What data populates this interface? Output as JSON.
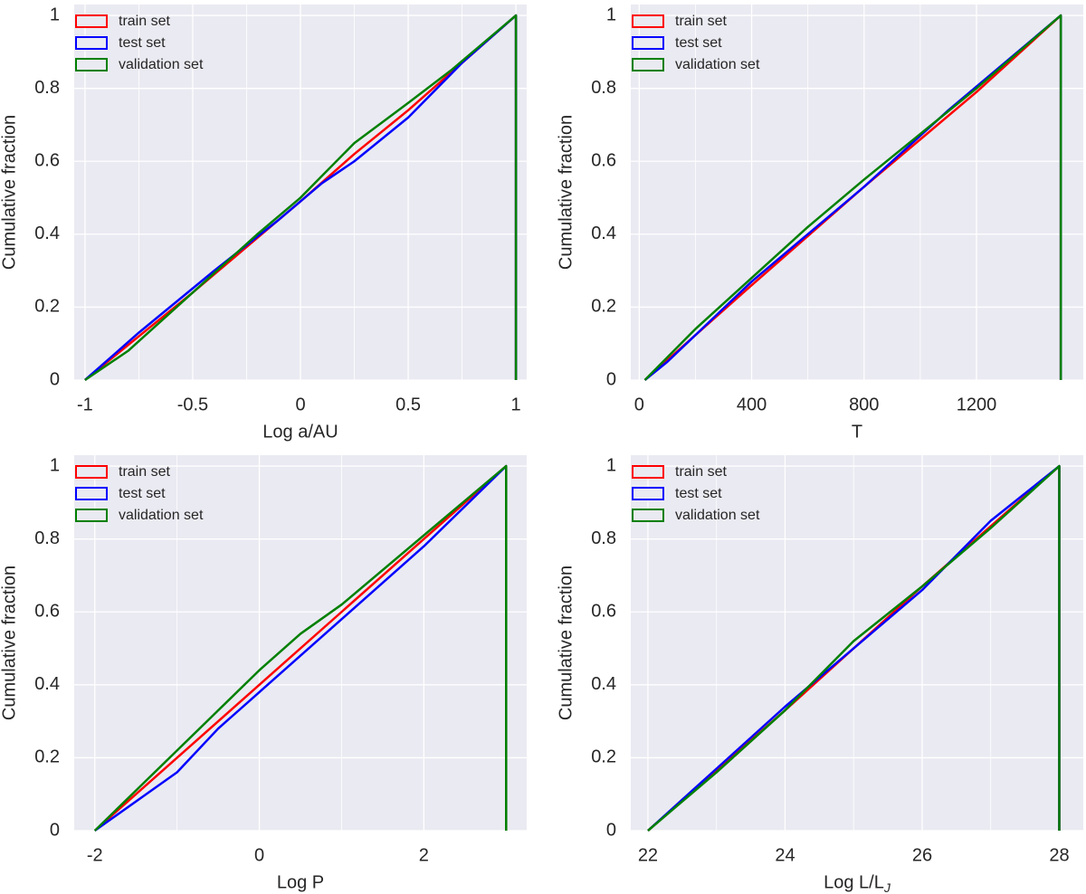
{
  "ylabel_common": "Cumulative fraction",
  "legend_labels": [
    "train set",
    "test set",
    "validation set"
  ],
  "series_colors": {
    "train": "#ff0000",
    "test": "#0000ff",
    "validation": "#008000"
  },
  "chart_data": [
    {
      "type": "line",
      "title": "",
      "xlabel": "Log a/AU",
      "xlabel_sub": "",
      "ylabel": "Cumulative fraction",
      "xlim": [
        -1.05,
        1.05
      ],
      "ylim": [
        0,
        1.03
      ],
      "xticks": [
        -1,
        -0.5,
        0,
        0.5,
        1
      ],
      "xtick_labels": [
        "-1",
        "-0.5",
        "0",
        "0.5",
        "1"
      ],
      "yticks": [
        0,
        0.2,
        0.4,
        0.6,
        0.8,
        1
      ],
      "ytick_labels": [
        "0",
        "0.2",
        "0.4",
        "0.6",
        "0.8",
        "1"
      ],
      "grid": true,
      "legend": "top-left",
      "end_x": 1,
      "series": [
        {
          "name": "train set",
          "key": "train",
          "x": [
            -1,
            -0.5,
            0,
            0.25,
            0.5,
            1
          ],
          "y": [
            0,
            0.24,
            0.49,
            0.62,
            0.74,
            1
          ]
        },
        {
          "name": "test set",
          "key": "test",
          "x": [
            -1,
            -0.75,
            -0.4,
            -0.1,
            0.1,
            0.25,
            0.5,
            0.75,
            1
          ],
          "y": [
            0,
            0.13,
            0.3,
            0.44,
            0.54,
            0.6,
            0.72,
            0.87,
            1
          ]
        },
        {
          "name": "validation set",
          "key": "validation",
          "x": [
            -1,
            -0.8,
            -0.5,
            -0.2,
            0,
            0.25,
            0.5,
            0.7,
            1
          ],
          "y": [
            0,
            0.08,
            0.24,
            0.4,
            0.5,
            0.65,
            0.76,
            0.85,
            1
          ]
        }
      ]
    },
    {
      "type": "line",
      "title": "",
      "xlabel": "T",
      "xlabel_sub": "",
      "ylabel": "Cumulative fraction",
      "xlim": [
        -30,
        1580
      ],
      "ylim": [
        0,
        1.03
      ],
      "xticks": [
        0,
        400,
        800,
        1200
      ],
      "xtick_labels": [
        "0",
        "400",
        "800",
        "1200"
      ],
      "yticks": [
        0,
        0.2,
        0.4,
        0.6,
        0.8,
        1
      ],
      "ytick_labels": [
        "0",
        "0.2",
        "0.4",
        "0.6",
        "0.8",
        "1"
      ],
      "grid": true,
      "legend": "top-left",
      "end_x": 1500,
      "series": [
        {
          "name": "train set",
          "key": "train",
          "x": [
            20,
            400,
            800,
            1200,
            1500
          ],
          "y": [
            0,
            0.26,
            0.53,
            0.79,
            1
          ]
        },
        {
          "name": "test set",
          "key": "test",
          "x": [
            20,
            100,
            400,
            800,
            1100,
            1500
          ],
          "y": [
            0,
            0.05,
            0.27,
            0.53,
            0.74,
            1
          ]
        },
        {
          "name": "validation set",
          "key": "validation",
          "x": [
            20,
            200,
            400,
            600,
            800,
            1200,
            1500
          ],
          "y": [
            0,
            0.14,
            0.28,
            0.42,
            0.55,
            0.8,
            1
          ]
        }
      ]
    },
    {
      "type": "line",
      "title": "",
      "xlabel": "Log P",
      "xlabel_sub": "",
      "ylabel": "Cumulative fraction",
      "xlim": [
        -2.25,
        3.25
      ],
      "ylim": [
        0,
        1.03
      ],
      "xticks": [
        -2,
        0,
        2
      ],
      "xtick_labels": [
        "-2",
        "0",
        "2"
      ],
      "yticks": [
        0,
        0.2,
        0.4,
        0.6,
        0.8,
        1
      ],
      "ytick_labels": [
        "0",
        "0.2",
        "0.4",
        "0.6",
        "0.8",
        "1"
      ],
      "grid": true,
      "legend": "top-left",
      "end_x": 3,
      "series": [
        {
          "name": "train set",
          "key": "train",
          "x": [
            -2,
            -1,
            0,
            1,
            2,
            3
          ],
          "y": [
            0,
            0.2,
            0.4,
            0.6,
            0.8,
            1
          ]
        },
        {
          "name": "test set",
          "key": "test",
          "x": [
            -2,
            -1,
            -0.5,
            0,
            1,
            2,
            3
          ],
          "y": [
            0,
            0.16,
            0.28,
            0.38,
            0.58,
            0.78,
            1
          ]
        },
        {
          "name": "validation set",
          "key": "validation",
          "x": [
            -2,
            -1,
            0,
            0.5,
            1,
            2,
            3
          ],
          "y": [
            0,
            0.22,
            0.44,
            0.54,
            0.62,
            0.81,
            1
          ]
        }
      ]
    },
    {
      "type": "line",
      "title": "",
      "xlabel": "Log L/L",
      "xlabel_sub": "J",
      "ylabel": "Cumulative fraction",
      "xlim": [
        21.75,
        28.35
      ],
      "ylim": [
        0,
        1.03
      ],
      "xticks": [
        22,
        24,
        26,
        28
      ],
      "xtick_labels": [
        "22",
        "24",
        "26",
        "28"
      ],
      "yticks": [
        0,
        0.2,
        0.4,
        0.6,
        0.8,
        1
      ],
      "ytick_labels": [
        "0",
        "0.2",
        "0.4",
        "0.6",
        "0.8",
        "1"
      ],
      "grid": true,
      "legend": "top-left",
      "end_x": 28,
      "series": [
        {
          "name": "train set",
          "key": "train",
          "x": [
            22,
            24,
            26,
            28
          ],
          "y": [
            0,
            0.33,
            0.67,
            1
          ]
        },
        {
          "name": "test set",
          "key": "test",
          "x": [
            22,
            23,
            24,
            25,
            26,
            27,
            28
          ],
          "y": [
            0,
            0.17,
            0.34,
            0.5,
            0.66,
            0.85,
            1
          ]
        },
        {
          "name": "validation set",
          "key": "validation",
          "x": [
            22,
            23,
            24,
            25,
            26,
            27,
            28
          ],
          "y": [
            0,
            0.16,
            0.33,
            0.52,
            0.67,
            0.83,
            1
          ]
        }
      ]
    }
  ]
}
